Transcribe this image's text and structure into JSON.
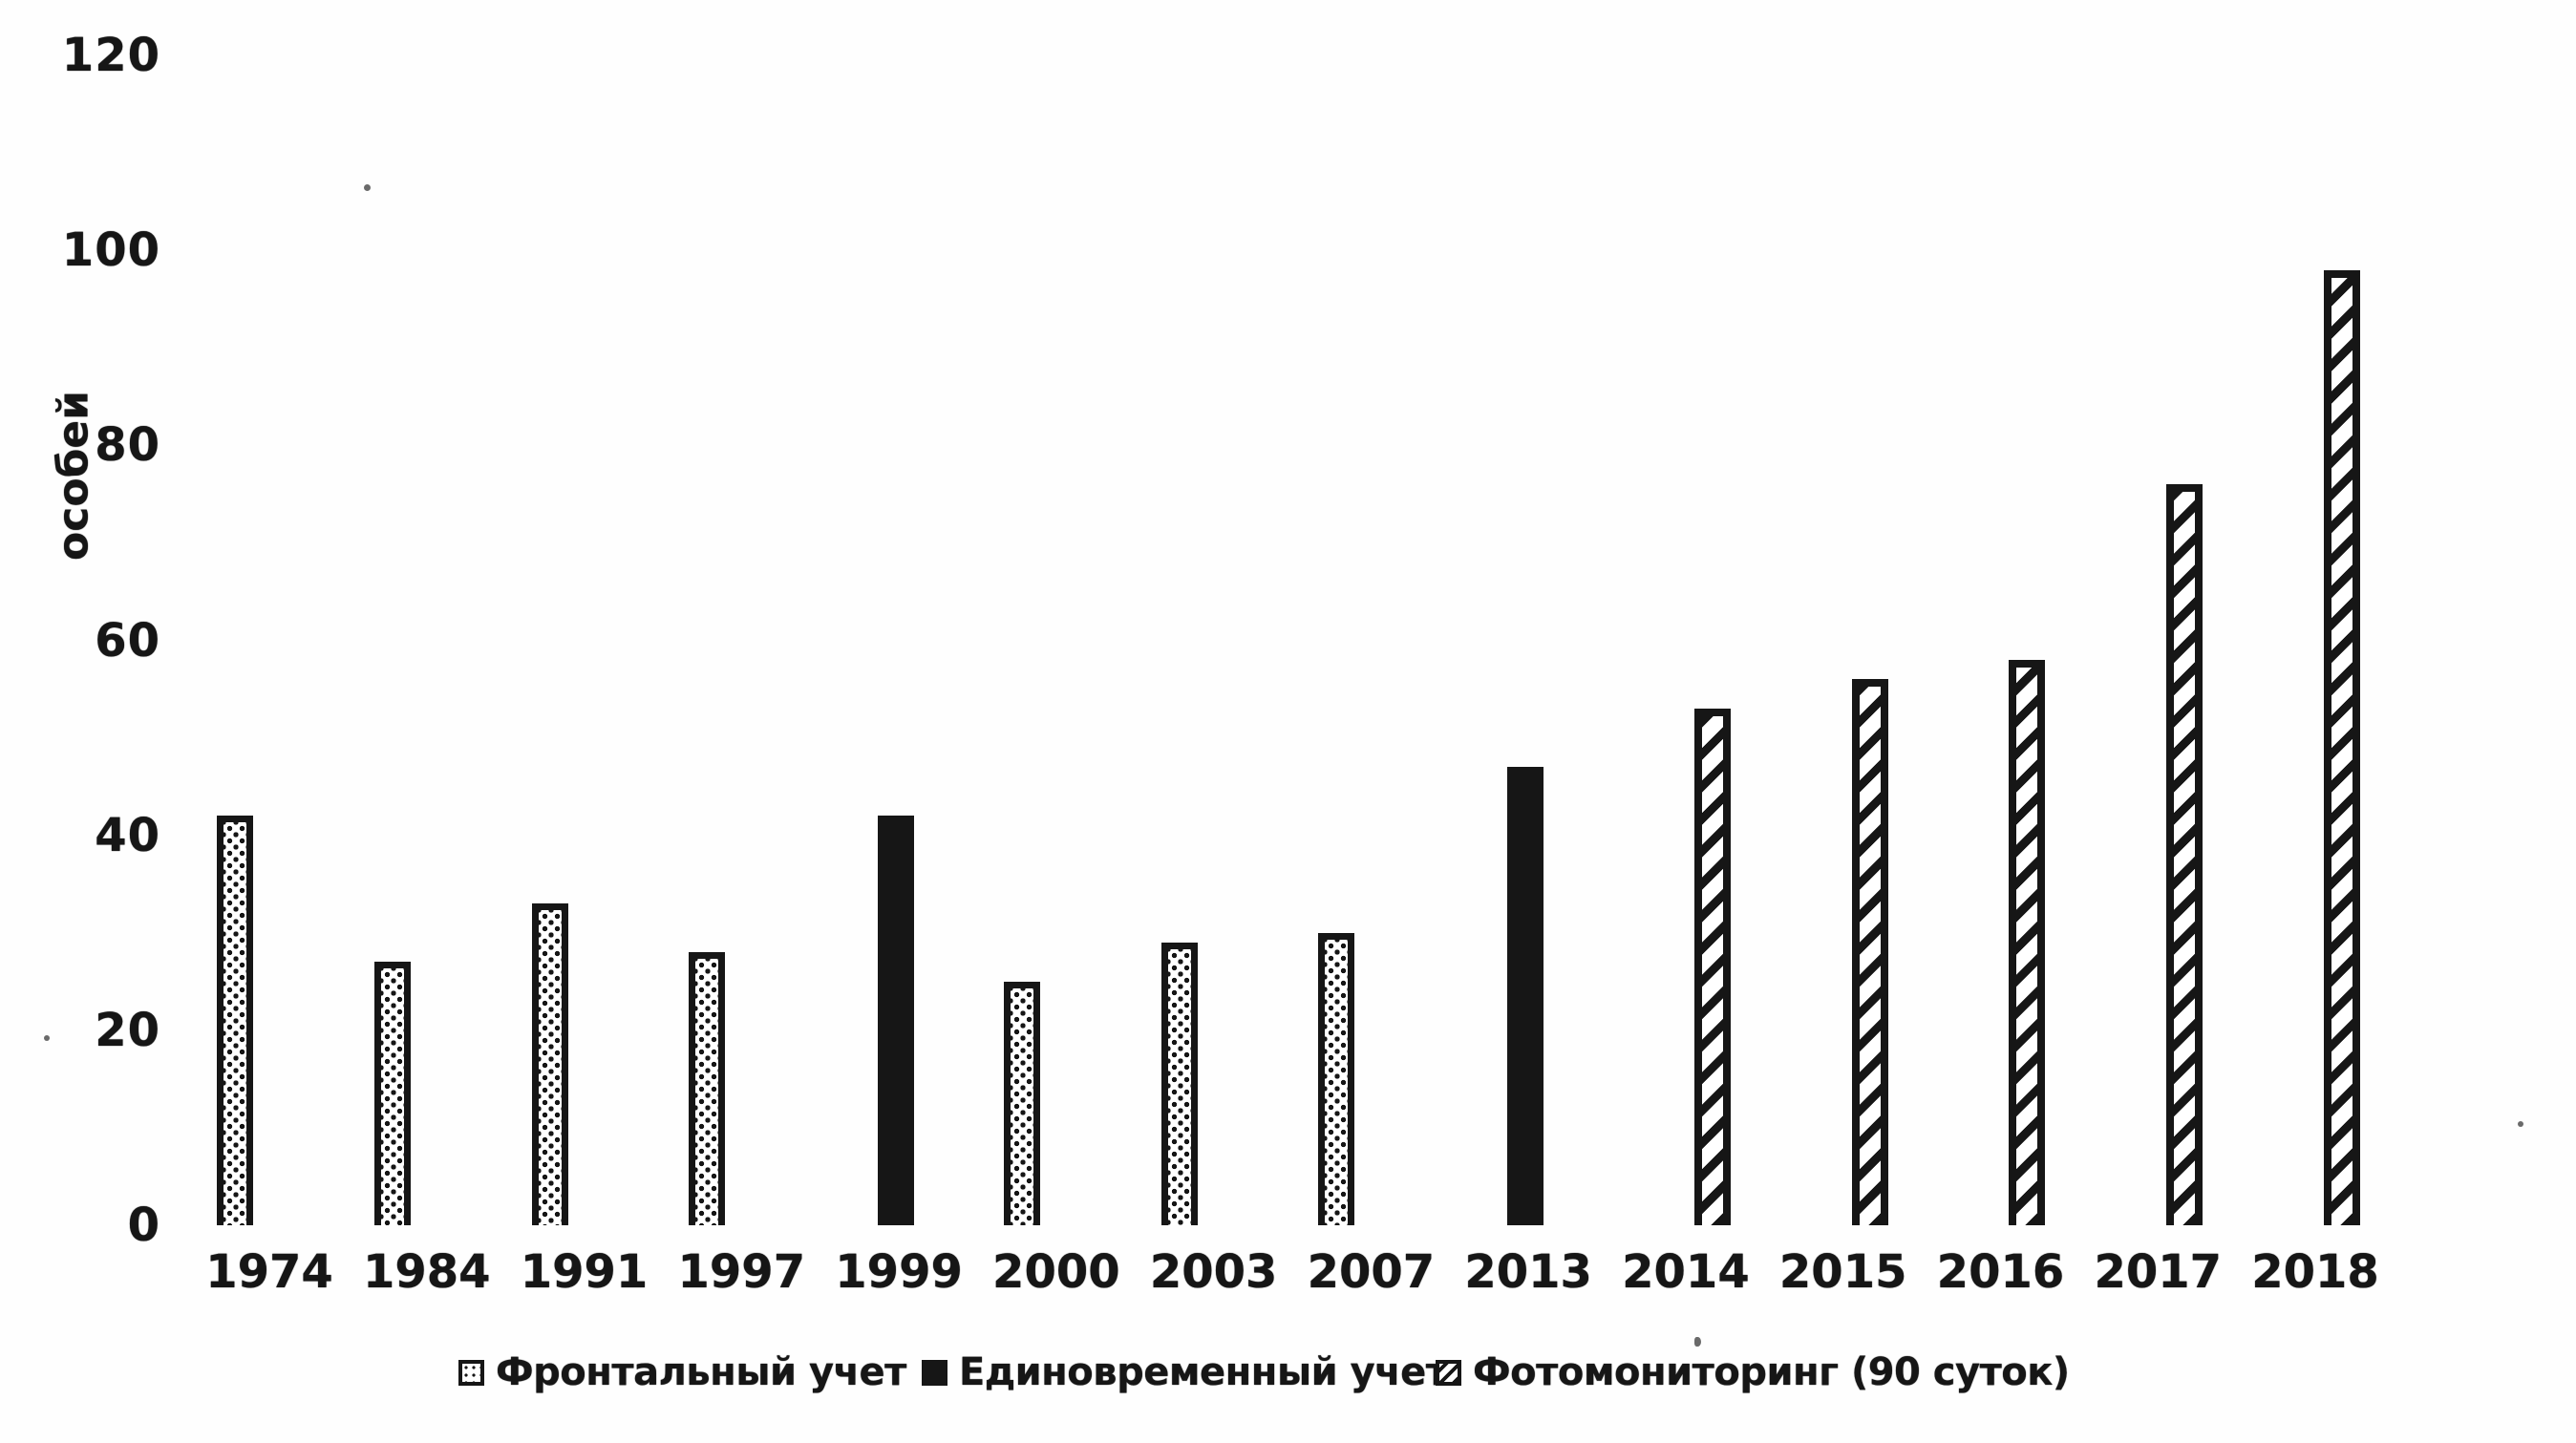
{
  "colors": {
    "ink": "#161616",
    "paper": "#fefefe"
  },
  "chart_data": {
    "type": "bar",
    "title": "",
    "xlabel": "",
    "ylabel": "особей",
    "ylim": [
      0,
      120
    ],
    "yticks": [
      0,
      20,
      40,
      60,
      80,
      100,
      120
    ],
    "grid": false,
    "axis_lines": false,
    "legend_position": "bottom",
    "categories": [
      "1974",
      "1984",
      "1991",
      "1997",
      "1999",
      "2000",
      "2003",
      "2007",
      "2013",
      "2014",
      "2015",
      "2016",
      "2017",
      "2018"
    ],
    "series": [
      {
        "name": "Фронтальный учет",
        "pattern": "dotted",
        "values": [
          42,
          27,
          33,
          28,
          null,
          25,
          29,
          30,
          null,
          null,
          null,
          null,
          null,
          null
        ]
      },
      {
        "name": "Единовременный учет",
        "pattern": "solid",
        "values": [
          null,
          null,
          null,
          null,
          42,
          null,
          null,
          null,
          47,
          null,
          null,
          null,
          null,
          null
        ]
      },
      {
        "name": "Фотомониторинг (90 суток)",
        "pattern": "hatched",
        "values": [
          null,
          null,
          null,
          null,
          null,
          null,
          null,
          null,
          null,
          53,
          56,
          58,
          76,
          98
        ]
      }
    ]
  }
}
